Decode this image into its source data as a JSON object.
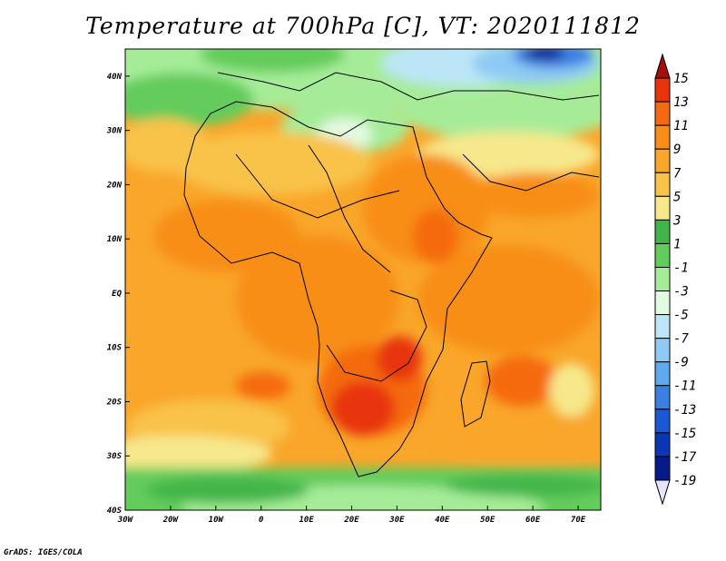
{
  "title": "Temperature at 700hPa [C], VT: 2020111812",
  "credit": "GrADS: IGES/COLA",
  "chart_data": {
    "type": "heatmap",
    "variable": "Temperature at 700hPa",
    "units": "C",
    "valid_time": "2020111812",
    "xlim": [
      -30,
      75
    ],
    "ylim": [
      -40,
      45
    ],
    "x_ticks": [
      {
        "value": -30,
        "label": "30W"
      },
      {
        "value": -20,
        "label": "20W"
      },
      {
        "value": -10,
        "label": "10W"
      },
      {
        "value": 0,
        "label": "0"
      },
      {
        "value": 10,
        "label": "10E"
      },
      {
        "value": 20,
        "label": "20E"
      },
      {
        "value": 30,
        "label": "30E"
      },
      {
        "value": 40,
        "label": "40E"
      },
      {
        "value": 50,
        "label": "50E"
      },
      {
        "value": 60,
        "label": "60E"
      },
      {
        "value": 70,
        "label": "70E"
      }
    ],
    "y_ticks": [
      {
        "value": 40,
        "label": "40N"
      },
      {
        "value": 30,
        "label": "30N"
      },
      {
        "value": 20,
        "label": "20N"
      },
      {
        "value": 10,
        "label": "10N"
      },
      {
        "value": 0,
        "label": "EQ"
      },
      {
        "value": -10,
        "label": "10S"
      },
      {
        "value": -20,
        "label": "20S"
      },
      {
        "value": -30,
        "label": "30S"
      },
      {
        "value": -40,
        "label": "40S"
      }
    ],
    "colorbar": {
      "labels": [
        "15",
        "13",
        "11",
        "9",
        "7",
        "5",
        "3",
        "1",
        "-1",
        "-3",
        "-5",
        "-7",
        "-9",
        "-11",
        "-13",
        "-15",
        "-17",
        "-19"
      ],
      "colors": [
        "#a50f0a",
        "#e8340c",
        "#f56a11",
        "#f88e16",
        "#f9a62a",
        "#f9c24a",
        "#f7e88c",
        "#42b54a",
        "#64cc5c",
        "#a6ec98",
        "#e2fae2",
        "#bce6f7",
        "#8ecaf3",
        "#5fa9ee",
        "#3c7fe3",
        "#1a58d6",
        "#0a37b5",
        "#071a8a",
        "#e6e6fa"
      ]
    }
  }
}
